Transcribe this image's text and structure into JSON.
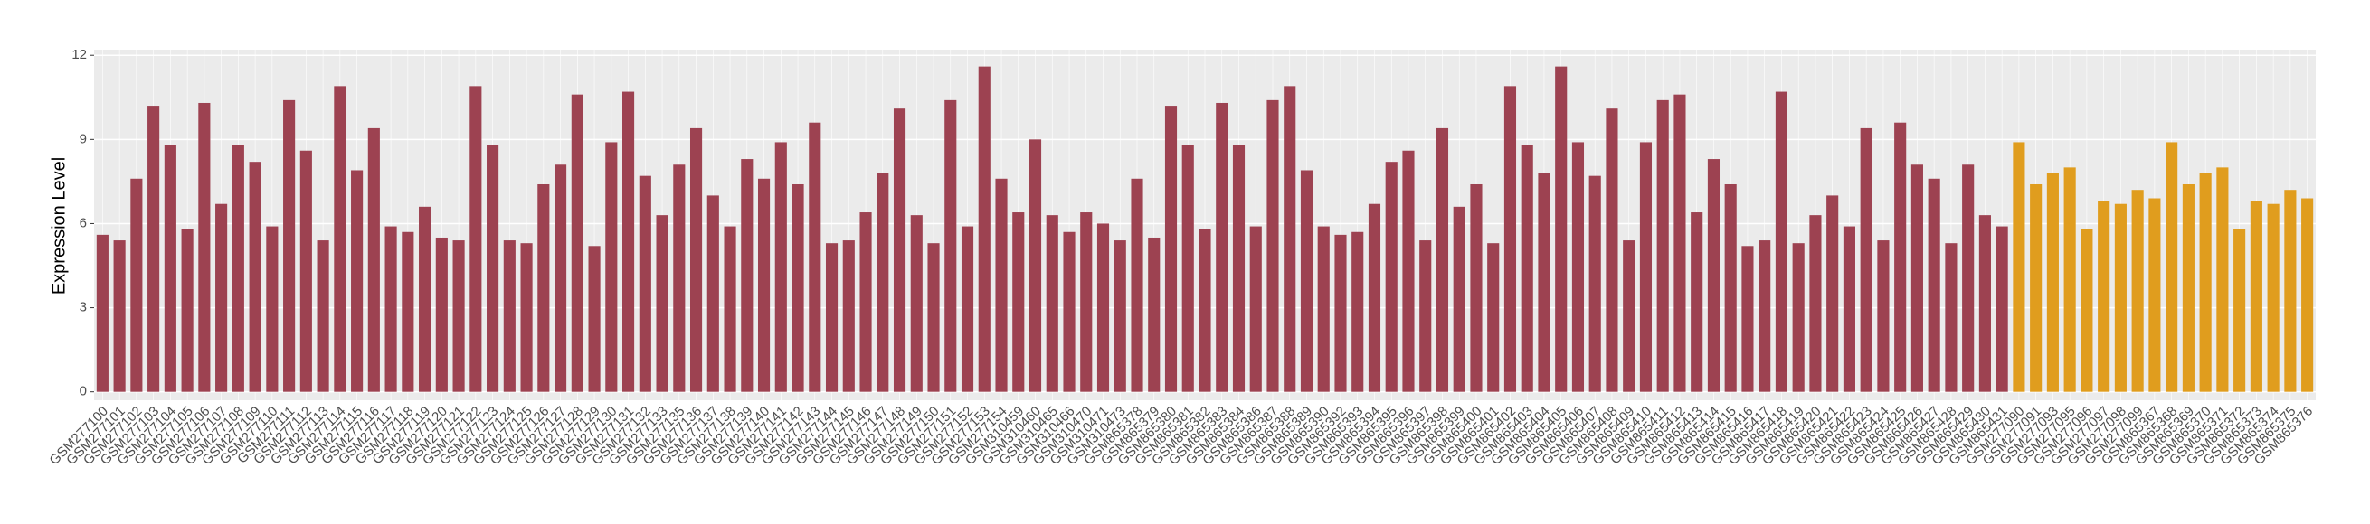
{
  "chart_data": {
    "type": "bar",
    "y_label": "Expression Level",
    "categories": [
      "GSM277100",
      "GSM277101",
      "GSM277102",
      "GSM277103",
      "GSM277104",
      "GSM277105",
      "GSM277106",
      "GSM277107",
      "GSM277108",
      "GSM277109",
      "GSM277110",
      "GSM277111",
      "GSM277112",
      "GSM277113",
      "GSM277114",
      "GSM277115",
      "GSM277116",
      "GSM277117",
      "GSM277118",
      "GSM277119",
      "GSM277120",
      "GSM277121",
      "GSM277122",
      "GSM277123",
      "GSM277124",
      "GSM277125",
      "GSM277126",
      "GSM277127",
      "GSM277128",
      "GSM277129",
      "GSM277130",
      "GSM277131",
      "GSM277132",
      "GSM277133",
      "GSM277135",
      "GSM277136",
      "GSM277137",
      "GSM277138",
      "GSM277139",
      "GSM277140",
      "GSM277141",
      "GSM277142",
      "GSM277143",
      "GSM277144",
      "GSM277145",
      "GSM277146",
      "GSM277147",
      "GSM277148",
      "GSM277149",
      "GSM277150",
      "GSM277151",
      "GSM277152",
      "GSM277153",
      "GSM277154",
      "GSM310459",
      "GSM310460",
      "GSM310465",
      "GSM310466",
      "GSM310470",
      "GSM310471",
      "GSM310473",
      "GSM865378",
      "GSM865379",
      "GSM865380",
      "GSM865381",
      "GSM865382",
      "GSM865383",
      "GSM865384",
      "GSM865386",
      "GSM865387",
      "GSM865388",
      "GSM865389",
      "GSM865390",
      "GSM865392",
      "GSM865393",
      "GSM865394",
      "GSM865395",
      "GSM865396",
      "GSM865397",
      "GSM865398",
      "GSM865399",
      "GSM865400",
      "GSM865401",
      "GSM865402",
      "GSM865403",
      "GSM865404",
      "GSM865405",
      "GSM865406",
      "GSM865407",
      "GSM865408",
      "GSM865409",
      "GSM865410",
      "GSM865411",
      "GSM865412",
      "GSM865413",
      "GSM865414",
      "GSM865415",
      "GSM865416",
      "GSM865417",
      "GSM865418",
      "GSM865419",
      "GSM865420",
      "GSM865421",
      "GSM865422",
      "GSM865423",
      "GSM865424",
      "GSM865425",
      "GSM865426",
      "GSM865427",
      "GSM865428",
      "GSM865429",
      "GSM865430",
      "GSM865431",
      "GSM277090",
      "GSM277091",
      "GSM277093",
      "GSM277095",
      "GSM277096",
      "GSM277097",
      "GSM277098",
      "GSM277099",
      "GSM865367",
      "GSM865368",
      "GSM865369",
      "GSM865370",
      "GSM865371",
      "GSM865372",
      "GSM865373",
      "GSM865374",
      "GSM865375",
      "GSM865376"
    ],
    "values": [
      5.6,
      5.4,
      7.6,
      10.2,
      8.8,
      5.8,
      10.3,
      6.7,
      8.8,
      8.2,
      5.9,
      10.4,
      8.6,
      5.4,
      10.9,
      7.9,
      9.4,
      5.9,
      5.7,
      6.6,
      5.5,
      5.4,
      10.9,
      8.8,
      5.4,
      5.3,
      7.4,
      8.1,
      10.6,
      5.2,
      8.9,
      10.7,
      7.7,
      6.3,
      8.1,
      9.4,
      7.0,
      5.9,
      8.3,
      7.6,
      8.9,
      7.4,
      9.6,
      5.3,
      5.4,
      6.4,
      7.8,
      10.1,
      6.3,
      5.3,
      10.4,
      5.9,
      11.6,
      7.6,
      6.4,
      9.0,
      6.3,
      5.7,
      6.4,
      6.0,
      5.4,
      7.6,
      5.5,
      10.2,
      8.8,
      5.8,
      10.3,
      8.8,
      5.9,
      10.4,
      10.9,
      7.9,
      5.9,
      5.6,
      5.7,
      6.7,
      8.2,
      8.6,
      5.4,
      9.4,
      6.6,
      7.4,
      5.3,
      10.9,
      8.8,
      7.8,
      11.6,
      8.9,
      7.7,
      10.1,
      5.4,
      8.9,
      10.4,
      10.6,
      6.4,
      8.3,
      7.4,
      5.2,
      5.4,
      10.7,
      5.3,
      6.3,
      7.0,
      5.9,
      9.4,
      5.4,
      9.6,
      8.1,
      7.6,
      5.3,
      8.1,
      6.3,
      5.9,
      8.9,
      7.4,
      7.8,
      8.0,
      5.8,
      6.8,
      6.7,
      7.2,
      6.9,
      8.9,
      7.4,
      7.8,
      8.0,
      5.8,
      6.8,
      6.7,
      7.2,
      6.9
    ],
    "colors": [
      "#9d4251",
      "#9d4251",
      "#9d4251",
      "#9d4251",
      "#9d4251",
      "#9d4251",
      "#9d4251",
      "#9d4251",
      "#9d4251",
      "#9d4251",
      "#9d4251",
      "#9d4251",
      "#9d4251",
      "#9d4251",
      "#9d4251",
      "#9d4251",
      "#9d4251",
      "#9d4251",
      "#9d4251",
      "#9d4251",
      "#9d4251",
      "#9d4251",
      "#9d4251",
      "#9d4251",
      "#9d4251",
      "#9d4251",
      "#9d4251",
      "#9d4251",
      "#9d4251",
      "#9d4251",
      "#9d4251",
      "#9d4251",
      "#9d4251",
      "#9d4251",
      "#9d4251",
      "#9d4251",
      "#9d4251",
      "#9d4251",
      "#9d4251",
      "#9d4251",
      "#9d4251",
      "#9d4251",
      "#9d4251",
      "#9d4251",
      "#9d4251",
      "#9d4251",
      "#9d4251",
      "#9d4251",
      "#9d4251",
      "#9d4251",
      "#9d4251",
      "#9d4251",
      "#9d4251",
      "#9d4251",
      "#9d4251",
      "#9d4251",
      "#9d4251",
      "#9d4251",
      "#9d4251",
      "#9d4251",
      "#9d4251",
      "#9d4251",
      "#9d4251",
      "#9d4251",
      "#9d4251",
      "#9d4251",
      "#9d4251",
      "#9d4251",
      "#9d4251",
      "#9d4251",
      "#9d4251",
      "#9d4251",
      "#9d4251",
      "#9d4251",
      "#9d4251",
      "#9d4251",
      "#9d4251",
      "#9d4251",
      "#9d4251",
      "#9d4251",
      "#9d4251",
      "#9d4251",
      "#9d4251",
      "#9d4251",
      "#9d4251",
      "#9d4251",
      "#9d4251",
      "#9d4251",
      "#9d4251",
      "#9d4251",
      "#9d4251",
      "#9d4251",
      "#9d4251",
      "#9d4251",
      "#9d4251",
      "#9d4251",
      "#9d4251",
      "#9d4251",
      "#9d4251",
      "#9d4251",
      "#9d4251",
      "#9d4251",
      "#9d4251",
      "#9d4251",
      "#9d4251",
      "#9d4251",
      "#9d4251",
      "#9d4251",
      "#9d4251",
      "#9d4251",
      "#9d4251",
      "#9d4251",
      "#9d4251",
      "#e09d1e",
      "#e09d1e",
      "#e09d1e",
      "#e09d1e",
      "#e09d1e",
      "#e09d1e",
      "#e09d1e",
      "#e09d1e",
      "#e09d1e",
      "#e09d1e",
      "#e09d1e",
      "#e09d1e",
      "#e09d1e",
      "#e09d1e",
      "#e09d1e",
      "#e09d1e",
      "#e09d1e",
      "#e09d1e"
    ],
    "ylim": [
      -0.3,
      12.2
    ],
    "yticks": [
      0,
      3,
      6,
      9,
      12
    ],
    "grid": true
  }
}
